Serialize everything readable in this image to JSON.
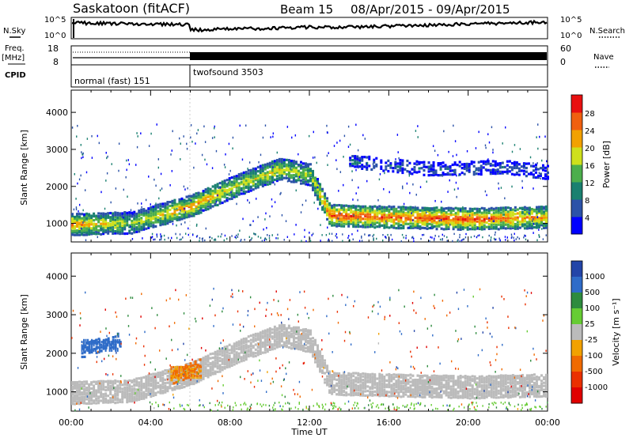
{
  "header": {
    "station": "Saskatoon (fitACF)",
    "beam": "Beam 15",
    "date_range": "08/Apr/2015 - 09/Apr/2015"
  },
  "strips": {
    "nsky_label": "N.Sky",
    "nsearch_label": "N.Search",
    "noise_ticks": [
      "10^5",
      "10^0"
    ],
    "freq_label_top": "Freq.",
    "freq_label_unit": "[MHz]",
    "freq_ticks": [
      "18",
      "8"
    ],
    "nave_label": "Nave",
    "nave_ticks": [
      "60",
      "0"
    ],
    "cpid_label": "CPID",
    "cpid_segments": [
      {
        "name": "normal (fast) 151",
        "start_hour": 0,
        "end_hour": 6
      },
      {
        "name": "twofsound 3503",
        "start_hour": 6,
        "end_hour": 24
      }
    ]
  },
  "colors": {
    "power": [
      "#0000ff",
      "#2b52a8",
      "#1a8070",
      "#4cae4c",
      "#cfe01c",
      "#f2a100",
      "#f06010",
      "#e81010"
    ],
    "velocity": [
      "#2345a8",
      "#2f6cc8",
      "#2e8b3e",
      "#66cc33",
      "#bbbbbb",
      "#f2a100",
      "#f06a00",
      "#ea3000",
      "#e00000"
    ]
  },
  "chart_data": [
    {
      "type": "heatmap",
      "title": "",
      "ylabel": "Slant Range [km]",
      "xlabel": "Time UT",
      "x_ticks": [
        "00:00",
        "04:00",
        "08:00",
        "12:00",
        "16:00",
        "20:00",
        "00:00"
      ],
      "xlim_hours": [
        0,
        24
      ],
      "ylim_km": [
        500,
        4600
      ],
      "y_ticks": [
        1000,
        2000,
        3000,
        4000
      ],
      "colorbar_label": "Power [dB]",
      "colorbar_ticks": [
        "28",
        "24",
        "20",
        "16",
        "12",
        "8",
        "4"
      ],
      "colorbar_range": [
        0,
        32
      ],
      "echo_layers": [
        {
          "feature": "main ionospheric band",
          "hours": [
            0,
            3,
            6,
            8.5,
            10.5,
            12,
            13,
            16,
            20,
            24
          ],
          "range_km": [
            1000,
            1050,
            1500,
            2100,
            2500,
            2350,
            1250,
            1200,
            1150,
            1200
          ],
          "power_db": [
            24,
            16,
            24,
            18,
            20,
            16,
            28,
            26,
            28,
            22
          ]
        },
        {
          "feature": "upper diffuse band",
          "hours": [
            14,
            18,
            22,
            24
          ],
          "range_km": [
            2700,
            2500,
            2550,
            2400
          ],
          "power_db": [
            8,
            6,
            6,
            6
          ]
        }
      ]
    },
    {
      "type": "heatmap",
      "title": "",
      "ylabel": "Slant Range [km]",
      "xlabel": "Time UT",
      "x_ticks": [
        "00:00",
        "04:00",
        "08:00",
        "12:00",
        "16:00",
        "20:00",
        "00:00"
      ],
      "xlim_hours": [
        0,
        24
      ],
      "ylim_km": [
        500,
        4600
      ],
      "y_ticks": [
        1000,
        2000,
        3000,
        4000
      ],
      "colorbar_label": "Velocity [m s⁻¹]",
      "colorbar_ticks": [
        "1000",
        "500",
        "100",
        "25",
        "-25",
        "-100",
        "-500",
        "-1000"
      ],
      "colorbar_range": [
        -1250,
        1250
      ],
      "echo_layers": [
        {
          "feature": "ground scatter band",
          "hours": [
            0,
            3,
            6,
            8.5,
            10.5,
            12,
            13,
            16,
            20,
            24
          ],
          "range_km": [
            1000,
            1050,
            1500,
            2100,
            2500,
            2350,
            1250,
            1200,
            1150,
            1200
          ],
          "velocity_ms": [
            0,
            0,
            0,
            0,
            0,
            0,
            0,
            0,
            0,
            0
          ]
        },
        {
          "feature": "negative velocity patch",
          "hours": [
            5,
            6.5
          ],
          "range_km": [
            1400,
            1700
          ],
          "velocity_ms": [
            -100,
            -150
          ]
        },
        {
          "feature": "positive velocity patch",
          "hours": [
            0.5,
            2.5
          ],
          "range_km": [
            2100,
            2400
          ],
          "velocity_ms": [
            900,
            600
          ]
        }
      ]
    }
  ]
}
